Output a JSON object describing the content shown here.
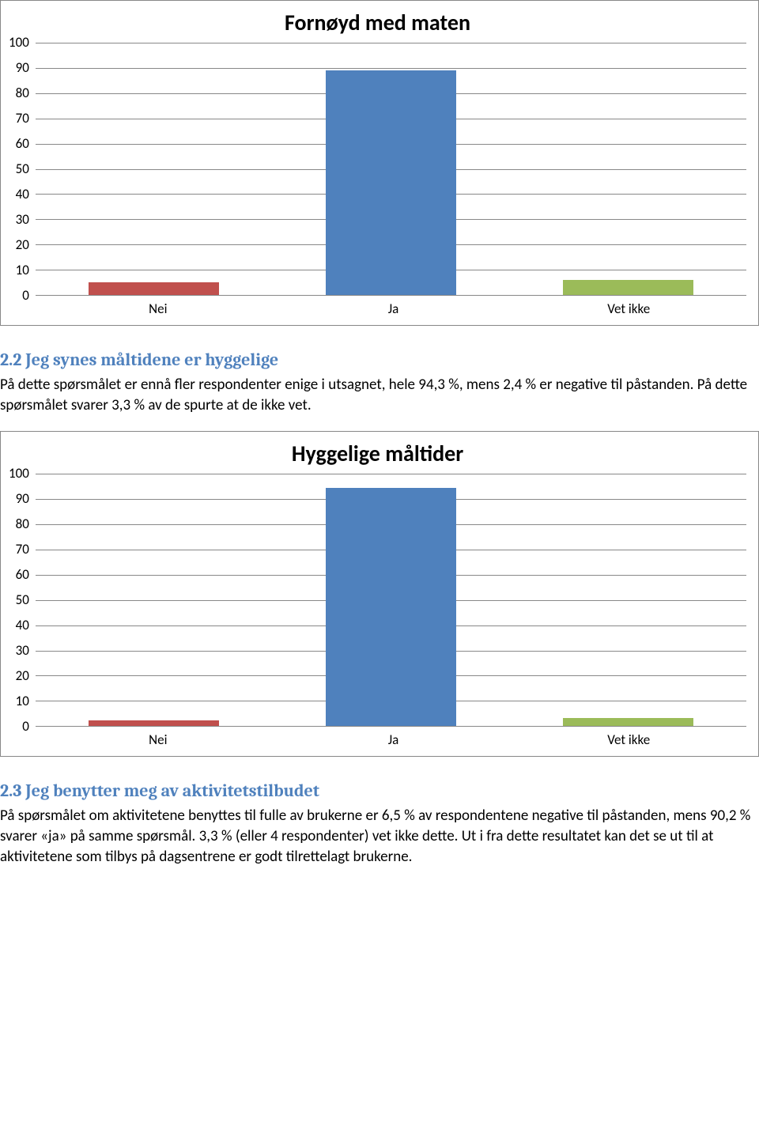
{
  "chart1": {
    "type": "bar",
    "title": "Fornøyd med maten",
    "title_fontsize": 28,
    "categories": [
      "Nei",
      "Ja",
      "Vet ikke"
    ],
    "values": [
      5,
      89,
      6
    ],
    "bar_colors": [
      "#c0504d",
      "#4f81bd",
      "#9bbb59"
    ],
    "ylim": [
      0,
      100
    ],
    "ytick_step": 10,
    "yticks": [
      100,
      90,
      80,
      70,
      60,
      50,
      40,
      30,
      20,
      10,
      0
    ],
    "grid_color": "#888888",
    "background_color": "#ffffff",
    "label_fontsize": 17,
    "bar_width": 0.55
  },
  "section1": {
    "heading": "2.2 Jeg synes måltidene er hyggelige",
    "body": "På dette spørsmålet er ennå fler respondenter enige i utsagnet, hele 94,3 %, mens 2,4 % er negative til påstanden. På dette spørsmålet svarer 3,3 % av de spurte at de ikke vet."
  },
  "chart2": {
    "type": "bar",
    "title": "Hyggelige måltider",
    "title_fontsize": 28,
    "categories": [
      "Nei",
      "Ja",
      "Vet ikke"
    ],
    "values": [
      2.4,
      94.3,
      3.3
    ],
    "bar_colors": [
      "#c0504d",
      "#4f81bd",
      "#9bbb59"
    ],
    "ylim": [
      0,
      100
    ],
    "ytick_step": 10,
    "yticks": [
      100,
      90,
      80,
      70,
      60,
      50,
      40,
      30,
      20,
      10,
      0
    ],
    "grid_color": "#888888",
    "background_color": "#ffffff",
    "label_fontsize": 17,
    "bar_width": 0.55
  },
  "section2": {
    "heading": "2.3 Jeg benytter meg av aktivitetstilbudet",
    "body": "På spørsmålet om aktivitetene benyttes til fulle av brukerne er 6,5 % av respondentene negative til påstanden, mens 90,2 % svarer «ja» på samme spørsmål. 3,3 % (eller 4 respondenter) vet ikke dette. Ut i fra dette resultatet kan det se ut til at aktivitetene som tilbys på dagsentrene er godt tilrettelagt brukerne."
  }
}
